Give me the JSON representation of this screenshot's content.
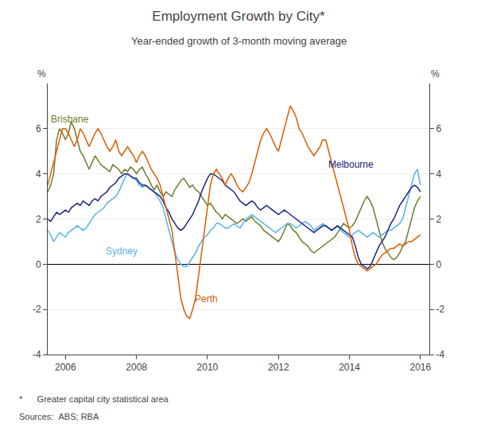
{
  "chart_data": {
    "type": "line",
    "title": "Employment Growth by City*",
    "subtitle": "Year-ended growth of 3-month moving average",
    "ylabel": "%",
    "y2label": "%",
    "notes": [
      "*      Greater capital city statistical area",
      "Sources:  ABS; RBA"
    ],
    "xlim": [
      2005.5,
      2016.25
    ],
    "xticks": [
      2006,
      2008,
      2010,
      2012,
      2014,
      2016
    ],
    "ylim": [
      -4,
      8
    ],
    "yticks": [
      -4,
      -2,
      0,
      2,
      4,
      6
    ],
    "y2lim": [
      -4,
      8
    ],
    "y2ticks": [
      -4,
      -2,
      0,
      2,
      4,
      6
    ],
    "grid": true,
    "x": [
      2005.5,
      2005.583,
      2005.667,
      2005.75,
      2005.833,
      2005.917,
      2006.0,
      2006.083,
      2006.167,
      2006.25,
      2006.333,
      2006.417,
      2006.5,
      2006.583,
      2006.667,
      2006.75,
      2006.833,
      2006.917,
      2007.0,
      2007.083,
      2007.167,
      2007.25,
      2007.333,
      2007.417,
      2007.5,
      2007.583,
      2007.667,
      2007.75,
      2007.833,
      2007.917,
      2008.0,
      2008.083,
      2008.167,
      2008.25,
      2008.333,
      2008.417,
      2008.5,
      2008.583,
      2008.667,
      2008.75,
      2008.833,
      2008.917,
      2009.0,
      2009.083,
      2009.167,
      2009.25,
      2009.333,
      2009.417,
      2009.5,
      2009.583,
      2009.667,
      2009.75,
      2009.833,
      2009.917,
      2010.0,
      2010.083,
      2010.167,
      2010.25,
      2010.333,
      2010.417,
      2010.5,
      2010.583,
      2010.667,
      2010.75,
      2010.833,
      2010.917,
      2011.0,
      2011.083,
      2011.167,
      2011.25,
      2011.333,
      2011.417,
      2011.5,
      2011.583,
      2011.667,
      2011.75,
      2011.833,
      2011.917,
      2012.0,
      2012.083,
      2012.167,
      2012.25,
      2012.333,
      2012.417,
      2012.5,
      2012.583,
      2012.667,
      2012.75,
      2012.833,
      2012.917,
      2013.0,
      2013.083,
      2013.167,
      2013.25,
      2013.333,
      2013.417,
      2013.5,
      2013.583,
      2013.667,
      2013.75,
      2013.833,
      2013.917,
      2014.0,
      2014.083,
      2014.167,
      2014.25,
      2014.333,
      2014.417,
      2014.5,
      2014.583,
      2014.667,
      2014.75,
      2014.833,
      2014.917,
      2015.0,
      2015.083,
      2015.167,
      2015.25,
      2015.333,
      2015.417,
      2015.5,
      2015.583,
      2015.667,
      2015.75,
      2015.833,
      2015.917,
      2016.0
    ],
    "series": [
      {
        "name": "Brisbane",
        "color": "#6b7c2a",
        "values": [
          3.2,
          3.5,
          4.0,
          5.5,
          6.0,
          5.8,
          5.5,
          5.8,
          6.3,
          6.0,
          5.5,
          5.0,
          4.8,
          4.5,
          4.2,
          4.5,
          4.8,
          4.6,
          4.4,
          4.3,
          4.2,
          4.1,
          4.4,
          4.3,
          4.2,
          4.0,
          4.2,
          4.1,
          4.3,
          4.2,
          4.0,
          4.2,
          4.3,
          4.0,
          3.8,
          3.5,
          3.3,
          3.5,
          3.2,
          3.0,
          3.2,
          3.1,
          3.0,
          3.3,
          3.5,
          3.7,
          3.8,
          3.6,
          3.4,
          3.5,
          3.3,
          3.2,
          3.0,
          2.8,
          2.6,
          2.7,
          2.5,
          2.3,
          2.2,
          2.0,
          2.2,
          2.1,
          2.0,
          1.9,
          1.8,
          1.9,
          2.0,
          1.9,
          2.0,
          2.1,
          1.9,
          1.8,
          1.7,
          1.5,
          1.4,
          1.3,
          1.2,
          1.1,
          1.0,
          1.2,
          1.5,
          1.8,
          1.7,
          1.5,
          1.4,
          1.2,
          1.0,
          0.9,
          0.8,
          0.6,
          0.5,
          0.6,
          0.7,
          0.8,
          0.9,
          1.0,
          1.1,
          1.2,
          1.4,
          1.6,
          1.8,
          1.7,
          1.6,
          1.7,
          1.9,
          2.2,
          2.5,
          2.8,
          3.0,
          2.8,
          2.5,
          2.0,
          1.5,
          1.0,
          0.7,
          0.5,
          0.3,
          0.2,
          0.3,
          0.5,
          0.8,
          1.0,
          1.5,
          2.0,
          2.5,
          2.8,
          3.0
        ]
      },
      {
        "name": "Sydney",
        "color": "#56b4e9",
        "values": [
          1.5,
          1.3,
          1.0,
          1.2,
          1.4,
          1.3,
          1.2,
          1.4,
          1.5,
          1.6,
          1.7,
          1.6,
          1.5,
          1.6,
          1.8,
          2.0,
          2.2,
          2.3,
          2.4,
          2.5,
          2.7,
          2.8,
          2.9,
          3.0,
          3.2,
          3.5,
          3.8,
          4.0,
          3.9,
          3.8,
          3.7,
          3.5,
          3.4,
          3.5,
          3.4,
          3.3,
          3.2,
          3.0,
          2.8,
          2.5,
          2.0,
          1.5,
          1.0,
          0.5,
          0.2,
          0.0,
          -0.1,
          -0.1,
          0.1,
          0.3,
          0.5,
          0.8,
          1.0,
          1.2,
          1.3,
          1.5,
          1.6,
          1.8,
          1.8,
          1.7,
          1.6,
          1.6,
          1.7,
          1.8,
          1.7,
          1.6,
          1.8,
          2.0,
          2.1,
          2.2,
          2.1,
          2.0,
          1.9,
          1.8,
          1.7,
          1.6,
          1.5,
          1.4,
          1.5,
          1.6,
          1.7,
          1.8,
          1.8,
          1.7,
          1.6,
          1.7,
          1.8,
          1.9,
          1.8,
          1.7,
          1.5,
          1.6,
          1.7,
          1.8,
          1.7,
          1.6,
          1.5,
          1.6,
          1.7,
          1.5,
          1.4,
          1.3,
          1.2,
          1.3,
          1.4,
          1.5,
          1.4,
          1.3,
          1.2,
          1.3,
          1.4,
          1.3,
          1.2,
          1.3,
          1.4,
          1.5,
          1.5,
          1.6,
          1.7,
          1.8,
          2.0,
          2.5,
          3.0,
          3.5,
          4.0,
          4.2,
          3.5
        ]
      },
      {
        "name": "Melbourne",
        "color": "#1a237e",
        "values": [
          2.0,
          1.9,
          2.1,
          2.3,
          2.2,
          2.3,
          2.4,
          2.3,
          2.5,
          2.6,
          2.7,
          2.6,
          2.8,
          2.7,
          2.6,
          2.8,
          2.9,
          2.8,
          3.0,
          3.1,
          3.2,
          3.4,
          3.5,
          3.6,
          3.8,
          3.9,
          4.0,
          4.0,
          3.9,
          3.8,
          3.8,
          3.6,
          3.5,
          3.5,
          3.4,
          3.3,
          3.2,
          3.1,
          3.0,
          2.8,
          2.5,
          2.3,
          2.0,
          1.8,
          1.6,
          1.5,
          1.6,
          1.8,
          2.0,
          2.2,
          2.5,
          2.8,
          3.2,
          3.5,
          3.8,
          4.0,
          4.0,
          3.9,
          3.8,
          3.7,
          3.5,
          3.4,
          3.3,
          3.2,
          3.0,
          2.8,
          2.7,
          2.6,
          2.7,
          2.8,
          2.7,
          2.5,
          2.4,
          2.5,
          2.6,
          2.5,
          2.4,
          2.3,
          2.2,
          2.3,
          2.4,
          2.3,
          2.2,
          2.1,
          2.0,
          1.9,
          1.8,
          1.7,
          1.6,
          1.5,
          1.4,
          1.5,
          1.6,
          1.7,
          1.7,
          1.6,
          1.5,
          1.6,
          1.7,
          1.6,
          1.5,
          1.4,
          1.3,
          1.2,
          0.8,
          0.3,
          0.0,
          -0.1,
          -0.2,
          -0.1,
          0.2,
          0.5,
          0.8,
          1.0,
          1.2,
          1.5,
          1.8,
          2.0,
          2.3,
          2.6,
          2.8,
          3.0,
          3.2,
          3.4,
          3.5,
          3.4,
          3.2
        ]
      },
      {
        "name": "Perth",
        "color": "#e05a00",
        "values": [
          3.5,
          4.0,
          4.5,
          5.0,
          5.5,
          6.0,
          6.0,
          5.8,
          5.5,
          5.2,
          5.5,
          6.0,
          5.8,
          5.5,
          5.2,
          5.5,
          5.8,
          6.0,
          5.8,
          5.5,
          5.2,
          5.0,
          5.2,
          5.5,
          5.0,
          4.8,
          5.0,
          5.2,
          5.0,
          4.8,
          4.5,
          4.8,
          5.0,
          4.8,
          4.5,
          4.2,
          4.0,
          3.8,
          3.5,
          3.0,
          2.5,
          2.0,
          1.5,
          0.5,
          -0.5,
          -1.5,
          -2.0,
          -2.3,
          -2.4,
          -2.0,
          -1.5,
          -0.5,
          0.5,
          1.5,
          2.5,
          3.5,
          4.0,
          4.2,
          4.0,
          3.8,
          3.5,
          3.8,
          4.0,
          3.8,
          3.5,
          3.3,
          3.2,
          3.4,
          3.6,
          4.0,
          4.5,
          5.0,
          5.5,
          5.8,
          6.0,
          5.8,
          5.5,
          5.2,
          5.0,
          5.5,
          6.0,
          6.5,
          7.0,
          6.8,
          6.5,
          6.0,
          5.8,
          5.5,
          5.2,
          5.0,
          4.8,
          5.0,
          5.2,
          5.5,
          5.5,
          5.0,
          4.5,
          4.0,
          3.5,
          3.0,
          2.5,
          2.0,
          1.5,
          0.8,
          0.3,
          0.0,
          -0.1,
          -0.2,
          -0.3,
          -0.2,
          -0.1,
          0.0,
          0.2,
          0.4,
          0.5,
          0.6,
          0.7,
          0.7,
          0.8,
          0.9,
          0.8,
          0.9,
          1.0,
          1.0,
          1.1,
          1.2,
          1.3
        ]
      }
    ],
    "annotations": [
      {
        "text": "Brisbane",
        "x": 2005.55,
        "y": 6.1
      },
      {
        "text": "Sydney",
        "x": 2007.1,
        "y": 0.25
      },
      {
        "text": "Melbourne",
        "x": 2013.35,
        "y": 4.1
      },
      {
        "text": "Perth",
        "x": 2009.6,
        "y": -1.85
      }
    ]
  }
}
